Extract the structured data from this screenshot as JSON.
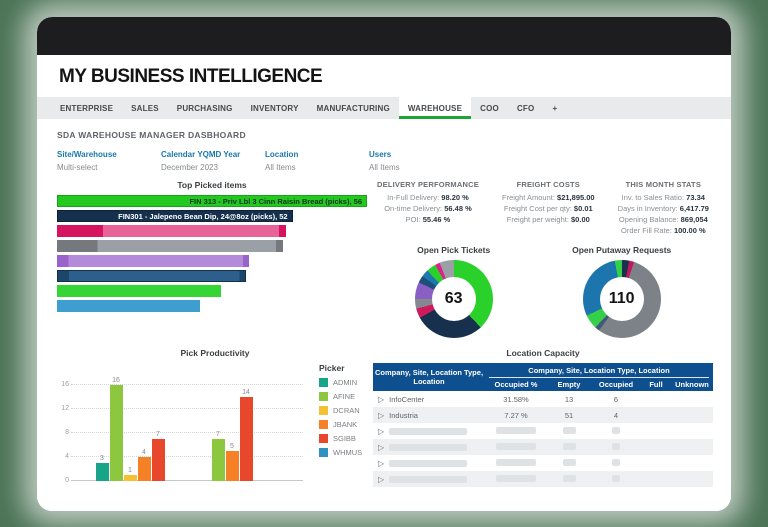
{
  "colors": {
    "page_background": "#4d7457",
    "titlebar": "#1d1d1f",
    "accent_green": "#1ea437",
    "filter_label_blue": "#1a79a8",
    "table_header_blue": "#0e4f90"
  },
  "app": {
    "title": "MY BUSINESS INTELLIGENCE"
  },
  "tabs": [
    {
      "label": "ENTERPRISE",
      "active": false
    },
    {
      "label": "SALES",
      "active": false
    },
    {
      "label": "PURCHASING",
      "active": false
    },
    {
      "label": "INVENTORY",
      "active": false
    },
    {
      "label": "MANUFACTURING",
      "active": false
    },
    {
      "label": "WAREHOUSE",
      "active": true
    },
    {
      "label": "COO",
      "active": false
    },
    {
      "label": "CFO",
      "active": false
    },
    {
      "label": "+",
      "active": false
    }
  ],
  "dashboard_title": "SDA WAREHOUSE MANAGER DASBHOARD",
  "filters": [
    {
      "label": "Site/Warehouse",
      "value": "Multi-select"
    },
    {
      "label": "Calendar YQMD Year",
      "value": "December 2023"
    },
    {
      "label": "Location",
      "value": "All Items"
    },
    {
      "label": "Users",
      "value": "All Items"
    }
  ],
  "stat_groups": [
    {
      "title": "DELIVERY PERFORMANCE",
      "rows": [
        {
          "label": "In-Full Delivery:",
          "value": "98.20 %"
        },
        {
          "label": "On-time Delivery:",
          "value": "56.48 %"
        },
        {
          "label": "POI:",
          "value": "55.46 %"
        }
      ]
    },
    {
      "title": "FREIGHT COSTS",
      "rows": [
        {
          "label": "Freight Amount:",
          "value": "$21,895.00"
        },
        {
          "label": "Freight Cost per qty:",
          "value": "$0.01"
        },
        {
          "label": "Freight per weight:",
          "value": "$0.00"
        }
      ]
    },
    {
      "title": "THIS MONTH STATS",
      "rows": [
        {
          "label": "Inv. to Sales Ratio:",
          "value": "73.34"
        },
        {
          "label": "Days in Inventory:",
          "value": "6,417.79"
        },
        {
          "label": "Opening Balance:",
          "value": "869,054"
        },
        {
          "label": "Order Fill Rate:",
          "value": "100.00 %"
        }
      ]
    }
  ],
  "chart_data": [
    {
      "id": "top_picked_items",
      "type": "bar",
      "orientation": "horizontal",
      "title": "Top Picked items",
      "bars": [
        {
          "label": "FIN 313 - Priv Lbl 3 Cinn Raisin Bread (picks), 56",
          "value": 56,
          "width_pct": 100,
          "color": "#24c91f",
          "border": "#17a31c",
          "label_color": "#0d3321"
        },
        {
          "label": "FIN301 - Jalepeno Bean Dip, 24@8oz (picks), 52",
          "value": 52,
          "width_pct": 76,
          "color": "#14304c",
          "border": "#0d2338",
          "label_color": "#ffffff"
        },
        {
          "label": "",
          "width_pct": 74,
          "color": "#d6135e",
          "inner": "#e8639a",
          "inner_start": 20
        },
        {
          "label": "",
          "width_pct": 73,
          "color": "#75797e",
          "inner": "#9aa0a5",
          "inner_start": 18
        },
        {
          "label": "",
          "width_pct": 62,
          "color": "#9a63cc",
          "inner": "#b48bdb",
          "inner_start": 6
        },
        {
          "label": "",
          "width_pct": 61,
          "color": "#1d466b",
          "inner": "#2d5f8c",
          "inner_start": 6,
          "border": "#132f4a"
        },
        {
          "label": "",
          "width_pct": 53,
          "color": "#35d535"
        },
        {
          "label": "",
          "width_pct": 46,
          "color": "#3e9ecf"
        }
      ]
    },
    {
      "id": "open_pick_tickets",
      "type": "pie",
      "title": "Open Pick Tickets",
      "center_value": "63",
      "segments": [
        {
          "color": "#2bd12b",
          "pct": 38
        },
        {
          "color": "#16304d",
          "pct": 29
        },
        {
          "color": "#d01a5e",
          "pct": 4
        },
        {
          "color": "#85898f",
          "pct": 4
        },
        {
          "color": "#8a5fc4",
          "pct": 7
        },
        {
          "color": "#1f4e79",
          "pct": 3
        },
        {
          "color": "#1b79b0",
          "pct": 3
        },
        {
          "color": "#2bd12b",
          "pct": 4
        },
        {
          "color": "#e0218a",
          "pct": 2
        },
        {
          "color": "#9aa0a6",
          "pct": 6
        }
      ]
    },
    {
      "id": "open_putaway_requests",
      "type": "pie",
      "title": "Open Putaway Requests",
      "center_value": "110",
      "segments": [
        {
          "color": "#1b2f4e",
          "pct": 3
        },
        {
          "color": "#c2185b",
          "pct": 2
        },
        {
          "color": "#7d8288",
          "pct": 55
        },
        {
          "color": "#44597a",
          "pct": 2
        },
        {
          "color": "#35d04a",
          "pct": 6
        },
        {
          "color": "#1c76ad",
          "pct": 29
        },
        {
          "color": "#35d04a",
          "pct": 3
        }
      ]
    },
    {
      "id": "pick_productivity",
      "type": "bar",
      "title": "Pick Productivity",
      "ylim": [
        0,
        16
      ],
      "y_ticks": [
        16,
        12,
        8,
        4,
        0
      ],
      "legend_title": "Picker",
      "pickers": [
        {
          "name": "ADMIN",
          "color": "#17a589"
        },
        {
          "name": "AFINE",
          "color": "#8dc63f"
        },
        {
          "name": "DCRAN",
          "color": "#f5c033"
        },
        {
          "name": "JBANK",
          "color": "#f58026"
        },
        {
          "name": "SGIBB",
          "color": "#e8472b"
        },
        {
          "name": "WHMUS",
          "color": "#3191c1"
        }
      ],
      "groups": [
        {
          "bars": [
            {
              "picker": "ADMIN",
              "value": 3
            },
            {
              "picker": "AFINE",
              "value": 16
            },
            {
              "picker": "DCRAN",
              "value": 1
            },
            {
              "picker": "JBANK",
              "value": 4
            },
            {
              "picker": "SGIBB",
              "value": 7
            }
          ]
        },
        {
          "bars": [
            {
              "picker": "AFINE",
              "value": 7
            },
            {
              "picker": "JBANK",
              "value": 5
            },
            {
              "picker": "SGIBB",
              "value": 14
            }
          ]
        }
      ]
    },
    {
      "id": "location_capacity",
      "type": "table",
      "title": "Location Capacity",
      "header_left": "Company, Site, Location Type, Location",
      "header_right": "Company, Site, Location Type, Location",
      "columns": [
        "Occupied %",
        "Empty",
        "Occupied",
        "Full",
        "Unknown"
      ],
      "rows": [
        {
          "redacted": false,
          "name": "InfoCenter",
          "occupied_pct": "31.58%",
          "empty": "13",
          "occupied": "6",
          "full": "",
          "unknown": ""
        },
        {
          "redacted": false,
          "name": "Industria",
          "occupied_pct": "7.27 %",
          "empty": "51",
          "occupied": "4",
          "full": "",
          "unknown": ""
        },
        {
          "redacted": true
        },
        {
          "redacted": true
        },
        {
          "redacted": true
        },
        {
          "redacted": true
        }
      ]
    }
  ]
}
